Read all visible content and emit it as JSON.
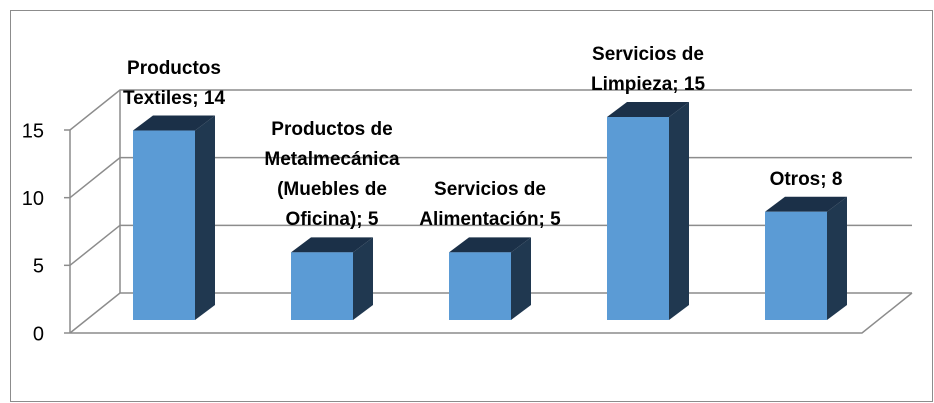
{
  "chart_data": {
    "type": "bar3d",
    "values": [
      14,
      5,
      5,
      15,
      8
    ],
    "value_labels": [
      "Productos Textiles; 14",
      "Productos de Metalmecánica (Muebles de Oficina); 5",
      "Servicios de Alimentación; 5",
      "Servicios de Limpieza; 15",
      "Otros; 8"
    ],
    "color": "#5b9bd5",
    "ylim": [
      0,
      15
    ],
    "yticks": [
      0,
      5,
      10,
      15
    ],
    "grid": true
  }
}
